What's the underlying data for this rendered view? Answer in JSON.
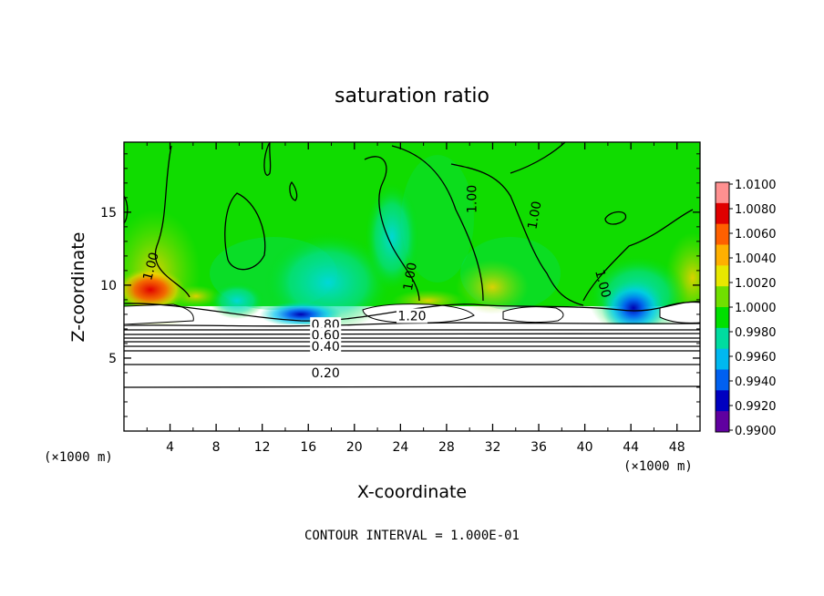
{
  "chart_data": {
    "type": "heatmap",
    "title": "saturation ratio",
    "xlabel": "X-coordinate",
    "ylabel": "Z-coordinate",
    "x_unit_left": "(×1000 m)",
    "x_unit_right": "(×1000 m)",
    "xlim": [
      0,
      50
    ],
    "ylim": [
      0,
      19.8
    ],
    "xticks": [
      4,
      8,
      12,
      16,
      20,
      24,
      28,
      32,
      36,
      40,
      44,
      48
    ],
    "xtick_labels": [
      "4",
      "8",
      "12",
      "16",
      "20",
      "24",
      "28",
      "32",
      "36",
      "40",
      "44",
      "48"
    ],
    "yticks": [
      5,
      10,
      15
    ],
    "ytick_labels": [
      "5",
      "10",
      "15"
    ],
    "colorbar": {
      "levels": [
        "1.0100",
        "1.0080",
        "1.0060",
        "1.0040",
        "1.0020",
        "1.0000",
        "0.9980",
        "0.9960",
        "0.9940",
        "0.9920",
        "0.9900"
      ],
      "colors": [
        "#ff9090",
        "#e00000",
        "#ff6000",
        "#ffb000",
        "#e8e800",
        "#70e000",
        "#00e000",
        "#00dca0",
        "#00b8f0",
        "#0060f0",
        "#0000c0",
        "#6000a0"
      ]
    },
    "contour_labels": [
      {
        "text": "1.00",
        "x": 2.3,
        "z": 11.3,
        "rot": 75
      },
      {
        "text": "1.00",
        "x": 24.8,
        "z": 10.6,
        "rot": 80
      },
      {
        "text": "1.00",
        "x": 30.2,
        "z": 15.9,
        "rot": 90
      },
      {
        "text": "1.00",
        "x": 35.6,
        "z": 14.8,
        "rot": 80
      },
      {
        "text": "1.00",
        "x": 41.6,
        "z": 10.1,
        "rot": -75
      },
      {
        "text": "1.20",
        "x": 25.0,
        "z": 7.9,
        "rot": 0
      },
      {
        "text": "0.80",
        "x": 17.5,
        "z": 7.3,
        "rot": 0
      },
      {
        "text": "0.60",
        "x": 17.5,
        "z": 6.6,
        "rot": 0
      },
      {
        "text": "0.40",
        "x": 17.5,
        "z": 5.8,
        "rot": 0
      },
      {
        "text": "0.20",
        "x": 17.5,
        "z": 4.0,
        "rot": 0
      }
    ],
    "footer": "CONTOUR INTERVAL = 1.000E-01",
    "grid": false
  }
}
